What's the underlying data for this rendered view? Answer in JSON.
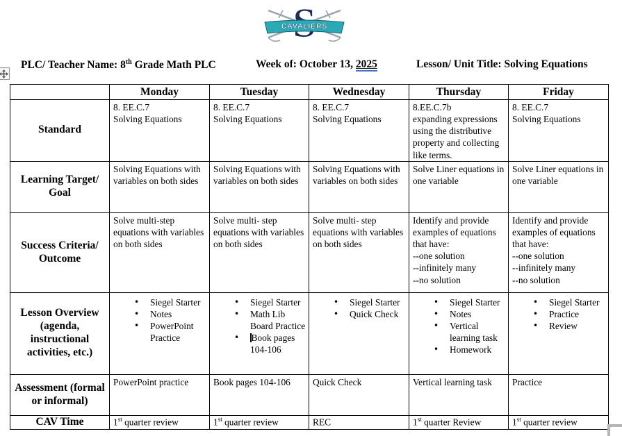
{
  "logo": {
    "letter": "S",
    "banner_text": "CAVALIERS",
    "colors": {
      "navy": "#1d2b56",
      "teal": "#2aa9b6",
      "sword_gray": "#99a1ad"
    }
  },
  "header": {
    "plc": {
      "pre": "PLC/ Teacher Name: 8",
      "sup": "th",
      "post": " Grade Math PLC"
    },
    "week": {
      "pre": "Week of: October 13, ",
      "year": "2025"
    },
    "lesson_title": "Lesson/ Unit Title: Solving Equations"
  },
  "table": {
    "days": [
      "Monday",
      "Tuesday",
      "Wednesday",
      "Thursday",
      "Friday"
    ],
    "standard": {
      "label": "Standard",
      "cells": [
        "8. EE.C.7\nSolving Equations",
        "8. EE.C.7\nSolving Equations",
        "8. EE.C.7\nSolving Equations",
        "8.EE.C.7b\nexpanding expressions using the distributive property and collecting like terms.",
        "8. EE.C.7\nSolving Equations"
      ]
    },
    "learning_target": {
      "label": "Learning Target/ Goal",
      "cells": [
        "Solving Equations with variables on both sides",
        "Solving Equations with variables on both sides",
        "Solving Equations with variables on both sides",
        "Solve Liner equations in one variable",
        "Solve Liner equations in one variable"
      ]
    },
    "success_criteria": {
      "label": "Success Criteria/ Outcome",
      "cells": [
        "Solve multi-step equations with variables on both sides",
        "Solve multi- step equations with variables on both sides",
        "Solve multi- step equations with variables on both sides",
        "Identify and provide examples of equations that have:\n--one solution\n--infinitely many\n--no solution",
        "Identify and provide examples of equations that have:\n--one solution\n--infinitely many\n--no solution"
      ]
    },
    "lesson_overview": {
      "label": "Lesson Overview (agenda, instructional activities, etc.)",
      "cells": [
        [
          "Siegel Starter",
          "Notes",
          "PowerPoint Practice"
        ],
        [
          "Siegel Starter",
          "Math Lib Board Practice",
          {
            "text": "Book pages 104-106",
            "caret": true
          }
        ],
        [
          "Siegel Starter",
          "Quick Check"
        ],
        [
          "Siegel Starter",
          "Notes",
          "Vertical learning task",
          "Homework"
        ],
        [
          "Siegel Starter",
          "Practice",
          "Review"
        ]
      ]
    },
    "assessment": {
      "label": "Assessment (formal or informal)",
      "cells": [
        "PowerPoint practice",
        "Book pages 104-106",
        "Quick Check",
        "Vertical learning task",
        "Practice"
      ]
    },
    "cav_time": {
      "label": "CAV Time",
      "cells": [
        {
          "pre": "1",
          "sup": "st",
          "post": " quarter review"
        },
        {
          "pre": "1",
          "sup": "st",
          "post": " quarter review"
        },
        {
          "pre": "REC",
          "sup": "",
          "post": ""
        },
        {
          "pre": "1",
          "sup": "st",
          "post": " quarter Review"
        },
        {
          "pre": "1",
          "sup": "st",
          "post": " quarter review"
        }
      ]
    }
  }
}
